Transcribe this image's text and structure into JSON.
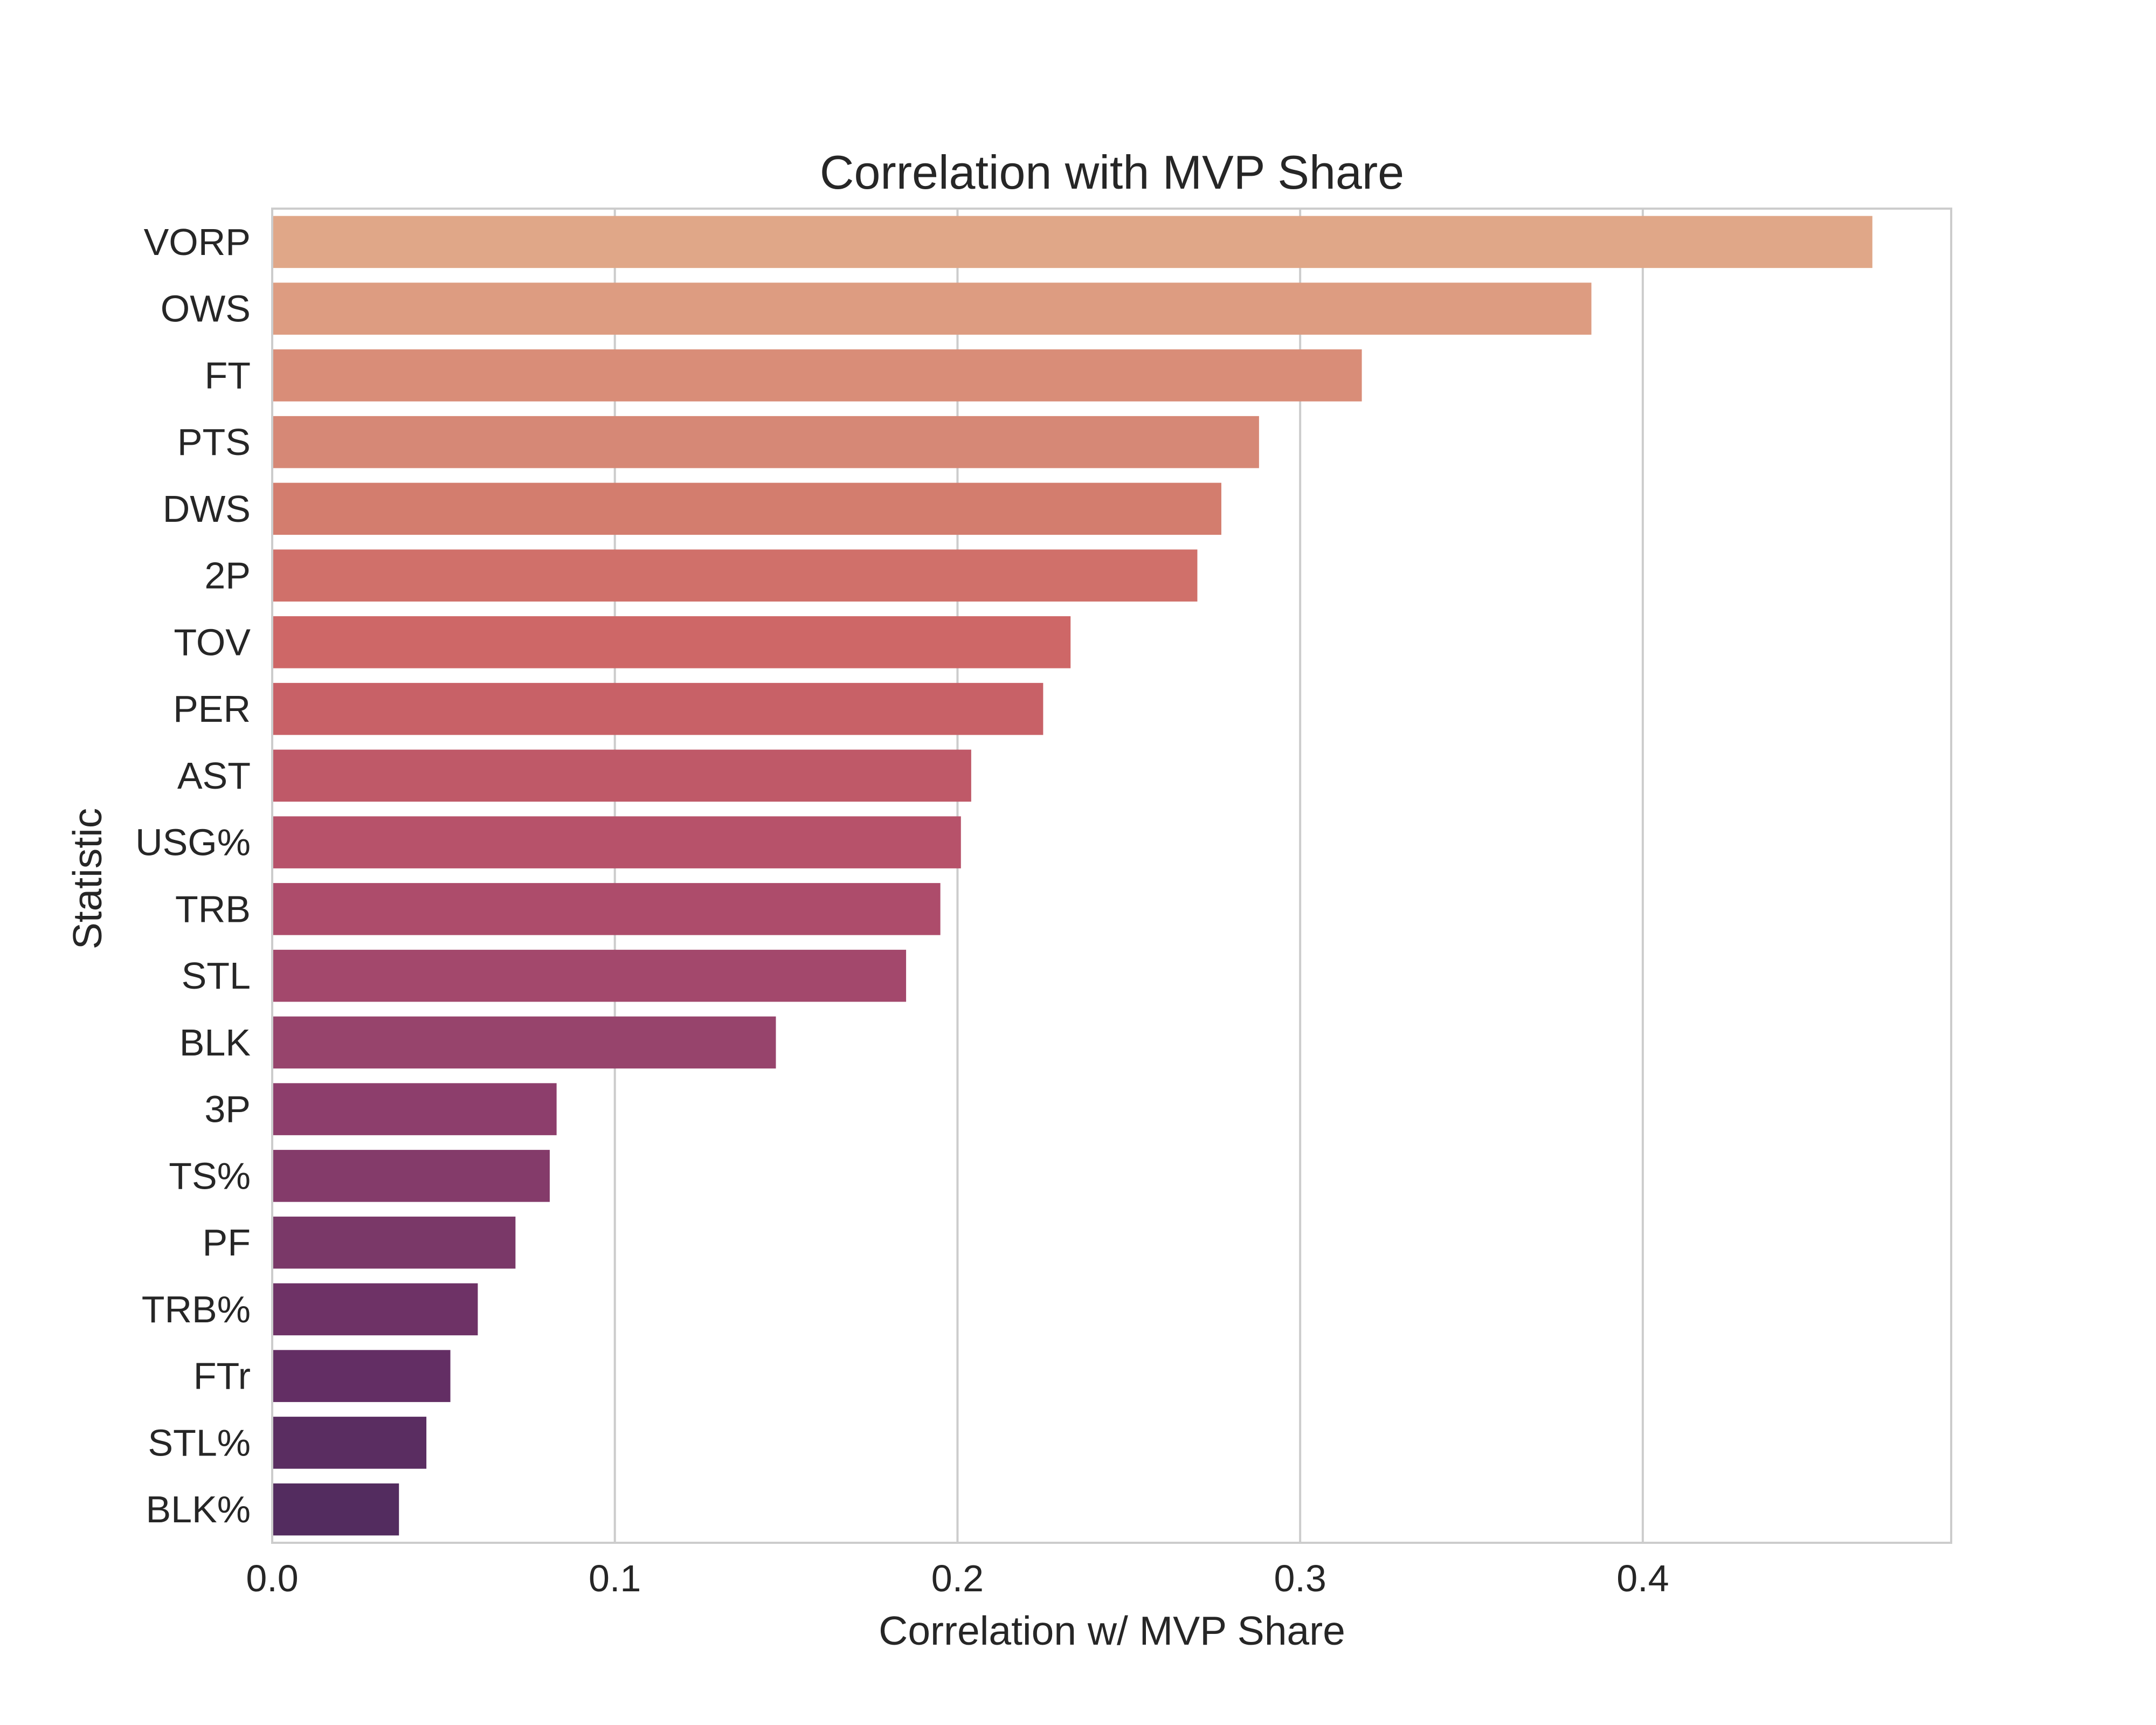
{
  "chart_data": {
    "type": "bar",
    "orientation": "horizontal",
    "title": "Correlation with MVP Share",
    "xlabel": "Correlation w/ MVP Share",
    "ylabel": "Statistic",
    "xlim": [
      0,
      0.49
    ],
    "xticks": [
      0.0,
      0.1,
      0.2,
      0.3,
      0.4
    ],
    "xtick_labels": [
      "0.0",
      "0.1",
      "0.2",
      "0.3",
      "0.4"
    ],
    "grid": "vertical",
    "categories": [
      "VORP",
      "OWS",
      "FT",
      "PTS",
      "DWS",
      "2P",
      "TOV",
      "PER",
      "AST",
      "USG%",
      "TRB",
      "STL",
      "BLK",
      "3P",
      "TS%",
      "PF",
      "TRB%",
      "FTr",
      "STL%",
      "BLK%"
    ],
    "values": [
      0.467,
      0.385,
      0.318,
      0.288,
      0.277,
      0.27,
      0.233,
      0.225,
      0.204,
      0.201,
      0.195,
      0.185,
      0.147,
      0.083,
      0.081,
      0.071,
      0.06,
      0.052,
      0.045,
      0.037
    ],
    "colors": [
      "#e0a788",
      "#dd9c81",
      "#d98d78",
      "#d68876",
      "#d37d6e",
      "#d0706a",
      "#ce6767",
      "#c86167",
      "#bf5968",
      "#b7526a",
      "#ad4c6b",
      "#a3486c",
      "#97446c",
      "#8d3e6c",
      "#843b6a",
      "#7a3868",
      "#6e3266",
      "#632e64",
      "#5a2d61",
      "#532c5f"
    ]
  }
}
